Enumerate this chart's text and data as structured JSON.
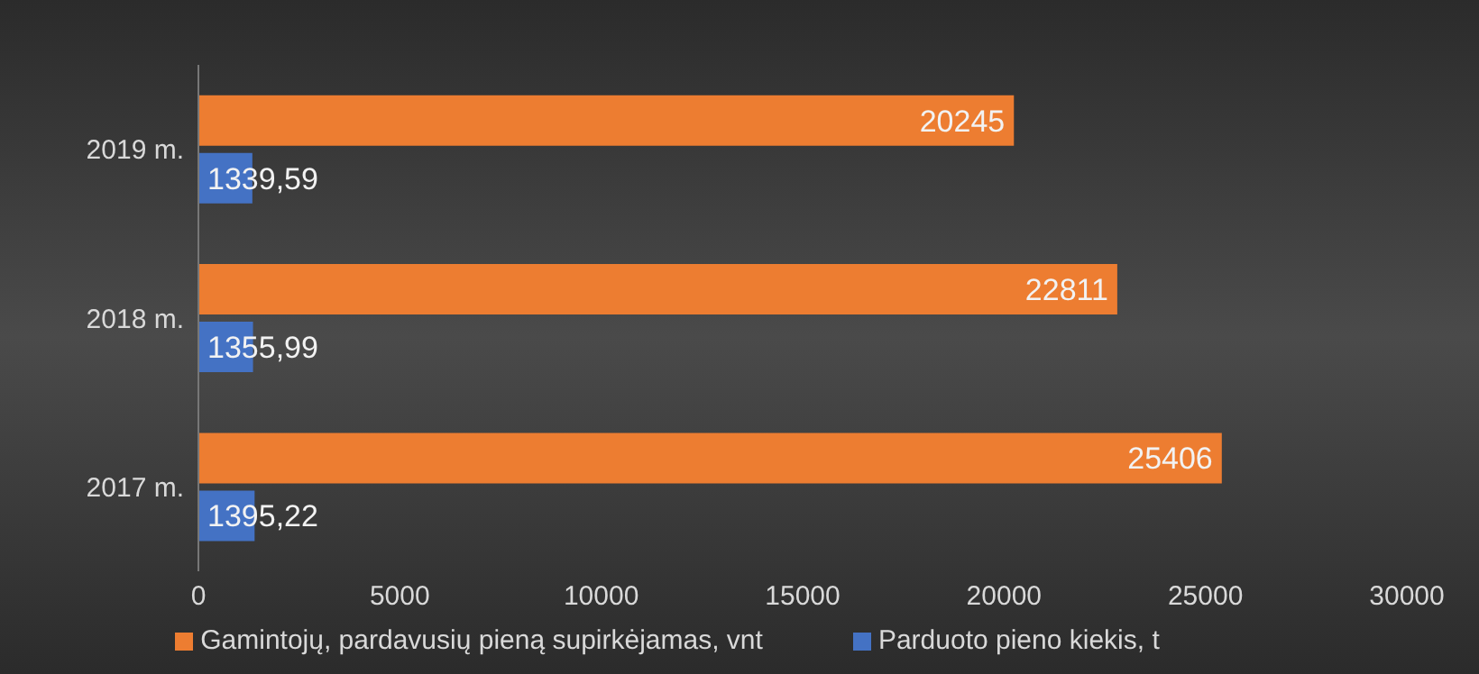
{
  "chart_data": {
    "type": "bar",
    "orientation": "horizontal",
    "categories": [
      "2019 m.",
      "2018 m.",
      "2017 m."
    ],
    "series": [
      {
        "name": "Gamintojų, pardavusių pieną supirkėjamas, vnt",
        "color": "#ed7d31",
        "values": [
          20245,
          22811,
          25406
        ],
        "value_labels": [
          "20245",
          "22811",
          "25406"
        ]
      },
      {
        "name": "Parduoto pieno kiekis, t",
        "color": "#4472c4",
        "values": [
          1339.59,
          1355.99,
          1395.22
        ],
        "value_labels": [
          "1339,59",
          "1355,99",
          "1395,22"
        ]
      }
    ],
    "xlim": [
      0,
      30000
    ],
    "xticks": [
      0,
      5000,
      10000,
      15000,
      20000,
      25000,
      30000
    ],
    "grid": false,
    "legend": "bottom"
  }
}
